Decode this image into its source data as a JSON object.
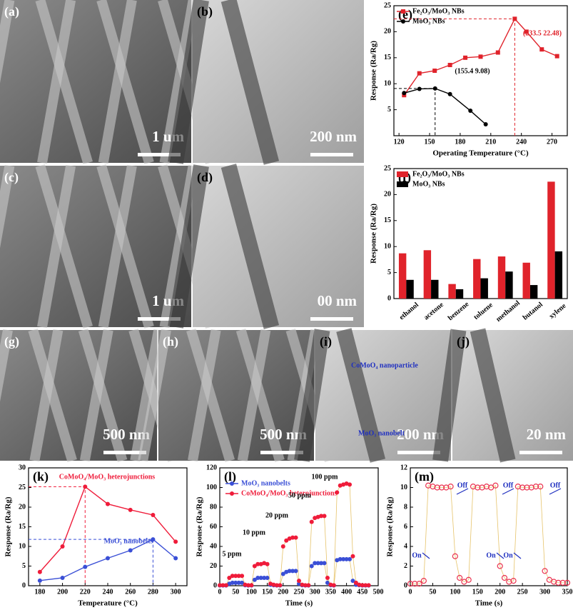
{
  "images": [
    {
      "label": "(a)",
      "scale": "1 um"
    },
    {
      "label": "(b)",
      "scale": "200 nm"
    },
    {
      "label": "(c)",
      "scale": "1 um"
    },
    {
      "label": "(d)",
      "scale": "00 nm"
    },
    {
      "label": "(g)",
      "scale": "500 nm"
    },
    {
      "label": "(h)",
      "scale": "500 nm"
    },
    {
      "label": "(i)",
      "scale": "200 nm",
      "notes": [
        "CoMoO₄ nanoparticle",
        "MoO₃ nanobelt"
      ]
    },
    {
      "label": "(j)",
      "scale": "20 nm"
    }
  ],
  "chart_data": [
    {
      "type": "line",
      "label": "(e)",
      "x_label": "Operating Temperature (°C)",
      "y_label": "Response (Ra/Rg)",
      "xlim": [
        115,
        285
      ],
      "xticks": [
        120,
        150,
        180,
        210,
        240,
        270
      ],
      "ylim": [
        0,
        25
      ],
      "yticks": [
        5,
        10,
        15,
        20,
        25
      ],
      "legend": "upper left",
      "annotations": [
        "(233.5  22.48)",
        "(155.4  9.08)"
      ],
      "series": [
        {
          "name": "Fe₂O₃/MoO₃ NBs",
          "color": "#e0232b",
          "marker": "square",
          "x": [
            125,
            140,
            155,
            170,
            185,
            200,
            217,
            233.5,
            245,
            260,
            275
          ],
          "values": [
            7.8,
            12,
            12.5,
            13.6,
            15,
            15.2,
            16,
            22.48,
            20,
            16.6,
            15.3
          ]
        },
        {
          "name": "MoO₃ NBs",
          "color": "#000000",
          "marker": "circle",
          "x": [
            125,
            140,
            155.4,
            170,
            190,
            205
          ],
          "values": [
            8.2,
            9,
            9.08,
            8,
            4.8,
            2.2
          ]
        }
      ]
    },
    {
      "type": "bar",
      "label": "(f)",
      "y_label": "Response (Ra/Rg)",
      "categories": [
        "ethanol",
        "acetone",
        "benzene",
        "toluene",
        "methanol",
        "butanol",
        "xylene"
      ],
      "ylim": [
        0,
        25
      ],
      "yticks": [
        0,
        5,
        10,
        15,
        20,
        25
      ],
      "legend": "upper left",
      "series": [
        {
          "name": "Fe₂O₃/MoO₃ NBs",
          "color": "#e0232b",
          "values": [
            8.7,
            9.3,
            2.8,
            7.6,
            8.1,
            6.9,
            22.48
          ]
        },
        {
          "name": "MoO₃ NBs",
          "color": "#000000",
          "values": [
            3.6,
            3.6,
            1.8,
            3.9,
            5.2,
            2.6,
            9.08
          ]
        }
      ]
    },
    {
      "type": "line",
      "label": "(k)",
      "x_label": "Temperature (°C)",
      "y_label": "Response (Ra/Rg)",
      "x": [
        180,
        200,
        220,
        240,
        260,
        280,
        300
      ],
      "xlim": [
        170,
        310
      ],
      "xticks": [
        180,
        200,
        220,
        240,
        260,
        280,
        300
      ],
      "ylim": [
        0,
        30
      ],
      "yticks": [
        0,
        5,
        10,
        15,
        20,
        25,
        30
      ],
      "annotations": [
        "CoMoO₄/MoO₃ heterojunctions",
        "MoO₃ nanobelts"
      ],
      "series": [
        {
          "name": "CoMoO₄/MoO₃ heterojunctions",
          "color": "#ef1c3a",
          "marker": "circle",
          "values": [
            3.5,
            10,
            25.2,
            20.8,
            19.3,
            18,
            11.2
          ]
        },
        {
          "name": "MoO₃ nanobelts",
          "color": "#3a4fd6",
          "marker": "circle",
          "values": [
            1.3,
            2,
            4.8,
            7,
            9,
            11.8,
            7
          ]
        }
      ]
    },
    {
      "type": "scatter",
      "label": "(l)",
      "x_label": "Time (s)",
      "y_label": "Response (Ra/Rg)",
      "x": [
        0,
        10,
        20,
        30,
        40,
        50,
        60,
        70,
        80,
        90,
        100,
        110,
        120,
        130,
        140,
        150,
        160,
        170,
        180,
        190,
        200,
        210,
        220,
        230,
        240,
        250,
        260,
        270,
        280,
        290,
        300,
        310,
        320,
        330,
        340,
        350,
        360,
        370,
        380,
        390,
        400,
        410,
        420,
        430,
        440,
        450,
        460,
        470
      ],
      "xlim": [
        0,
        500
      ],
      "xticks": [
        0,
        50,
        100,
        150,
        200,
        250,
        300,
        350,
        400,
        450,
        500
      ],
      "ylim": [
        0,
        120
      ],
      "yticks": [
        0,
        20,
        40,
        60,
        80,
        100,
        120
      ],
      "legend": "upper left",
      "annotations": [
        "5 ppm",
        "10 ppm",
        "20 ppm",
        "50 ppm",
        "100 ppm"
      ],
      "series": [
        {
          "name": "MoO₃ nanobelts",
          "color": "#3a4fd6",
          "marker": "circle",
          "values": [
            0.3,
            0.3,
            0.3,
            2,
            3,
            3,
            3,
            3,
            0.5,
            0.3,
            0.3,
            6,
            8,
            8,
            8,
            8,
            1,
            0.5,
            0.3,
            0.3,
            12,
            14,
            15,
            15,
            15,
            2,
            0.5,
            0.3,
            0.3,
            20,
            23,
            23,
            23,
            23,
            3,
            0.5,
            0.3,
            26,
            27,
            27,
            27,
            27,
            5,
            1,
            0.5,
            0.3,
            0.3,
            0.3
          ]
        },
        {
          "name": "CoMoO₄/MoO₃ heterojunctions",
          "color": "#ef1c3a",
          "marker": "circle",
          "values": [
            0.5,
            0.5,
            0.5,
            8,
            10,
            10,
            10,
            10,
            1,
            0.5,
            0.5,
            20,
            22,
            22,
            23,
            22,
            2,
            1,
            0.5,
            0.5,
            40,
            46,
            48,
            49,
            49,
            5,
            1,
            0.5,
            0.5,
            65,
            69,
            70,
            71,
            71,
            8,
            1,
            0.5,
            95,
            102,
            103,
            104,
            103,
            30,
            3,
            1,
            0.5,
            0.5,
            0.5
          ]
        }
      ]
    },
    {
      "type": "scatter",
      "label": "(m)",
      "x_label": "Time (s)",
      "y_label": "Response (Ra/Rg)",
      "x": [
        0,
        10,
        20,
        30,
        40,
        50,
        60,
        70,
        80,
        90,
        100,
        110,
        120,
        130,
        140,
        150,
        160,
        170,
        180,
        190,
        200,
        210,
        220,
        230,
        240,
        250,
        260,
        270,
        280,
        290,
        300,
        310,
        320,
        330,
        340,
        350
      ],
      "xlim": [
        0,
        350
      ],
      "xticks": [
        0,
        50,
        100,
        150,
        200,
        250,
        300,
        350
      ],
      "ylim": [
        0,
        12
      ],
      "yticks": [
        0,
        2,
        4,
        6,
        8,
        10,
        12
      ],
      "annotations": [
        "On",
        "Off",
        "On",
        "Off",
        "On",
        "Off"
      ],
      "series": [
        {
          "name": "CoMoO₄/MoO₃ heterojunctions",
          "color": "#ea3350",
          "marker": "open-circle",
          "values": [
            0.2,
            0.2,
            0.2,
            0.5,
            10.2,
            10.1,
            10,
            10,
            10,
            10.1,
            3,
            0.8,
            0.4,
            0.6,
            10.1,
            10,
            10,
            10.1,
            10,
            10.2,
            2,
            0.8,
            0.4,
            0.5,
            10.1,
            10,
            10,
            10,
            10.1,
            10.1,
            1.5,
            0.6,
            0.4,
            0.3,
            0.3,
            0.3
          ]
        }
      ]
    }
  ]
}
